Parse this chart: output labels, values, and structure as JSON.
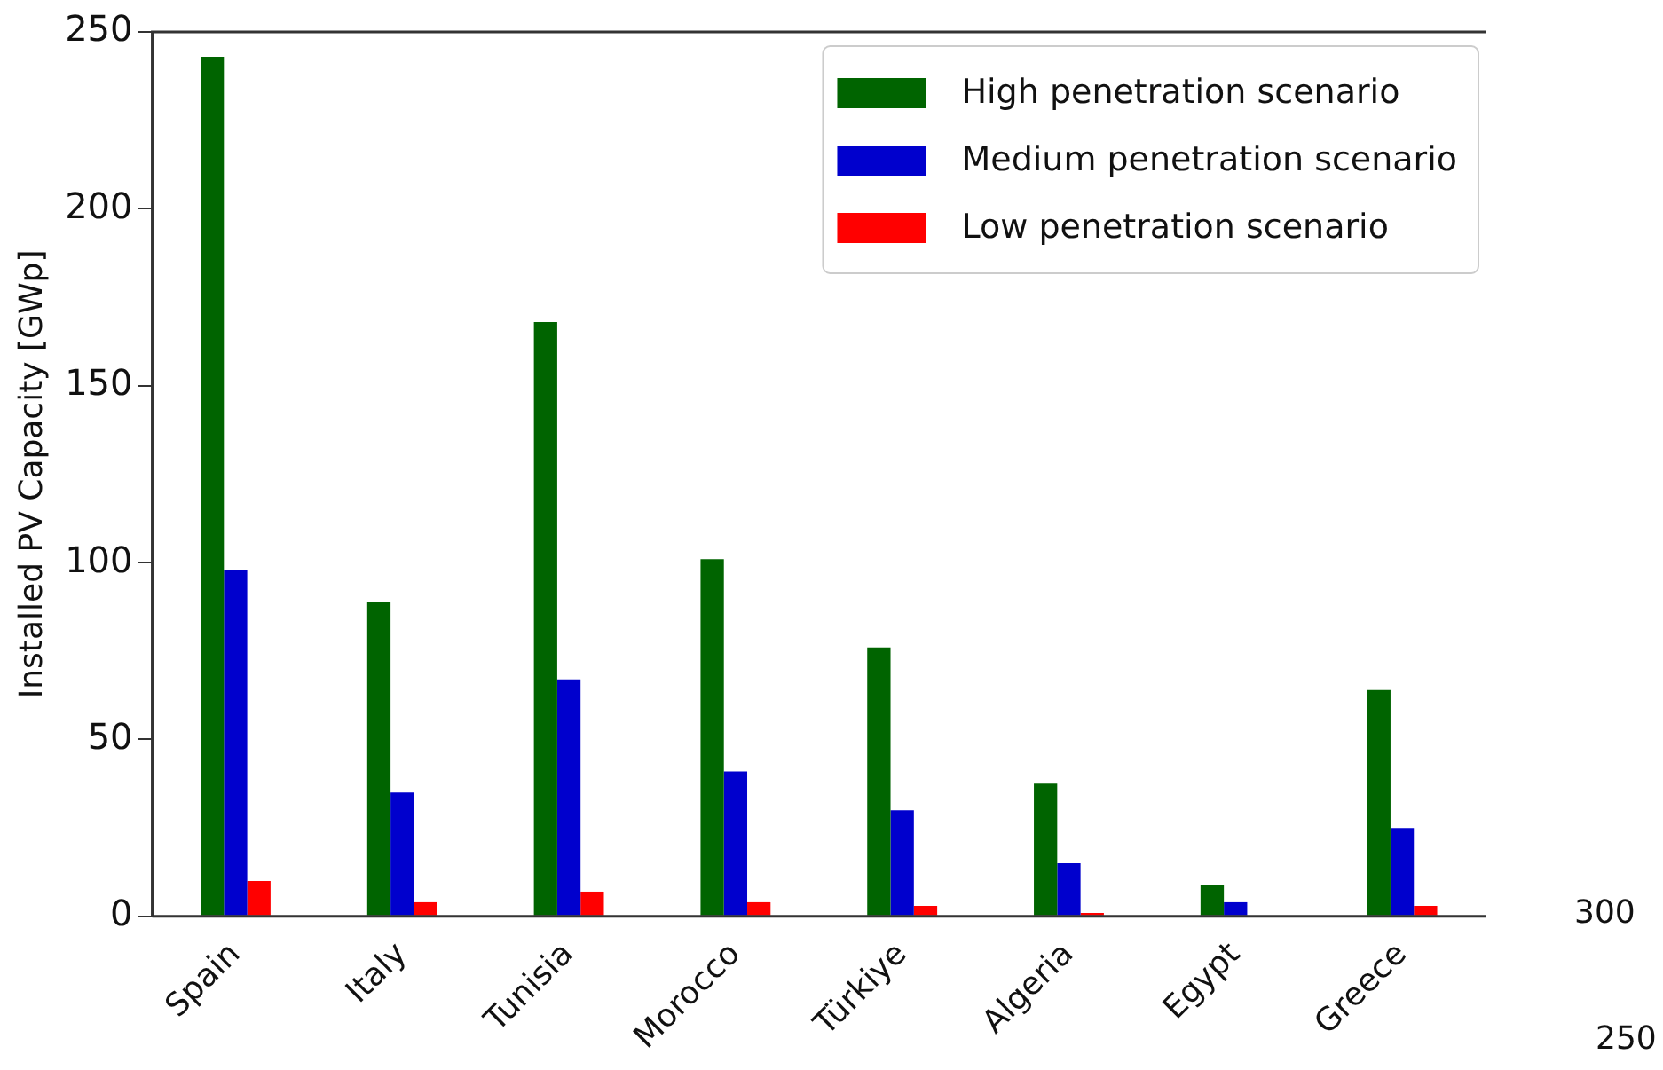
{
  "chart_data": {
    "type": "bar",
    "ylabel": "Installed PV Capacity [GWp]",
    "categories": [
      "Spain",
      "Italy",
      "Tunisia",
      "Morocco",
      "Türkiye",
      "Algeria",
      "Egypt",
      "Greece"
    ],
    "series": [
      {
        "name": "High penetration scenario",
        "color": "#006400",
        "values": [
          243,
          89,
          168,
          101,
          76,
          37.5,
          9,
          64
        ]
      },
      {
        "name": "Medium penetration scenario",
        "color": "#0000cd",
        "values": [
          98,
          35,
          67,
          41,
          30,
          15,
          4,
          25
        ]
      },
      {
        "name": "Low penetration scenario",
        "color": "#ff0000",
        "values": [
          10,
          4,
          7,
          4,
          3,
          1,
          0,
          3
        ]
      }
    ],
    "ylim": [
      0,
      250
    ],
    "yticks": [
      0,
      50,
      100,
      150,
      200,
      250
    ],
    "grid": false,
    "legend": "top right",
    "annotations": [
      "300",
      "250"
    ]
  }
}
